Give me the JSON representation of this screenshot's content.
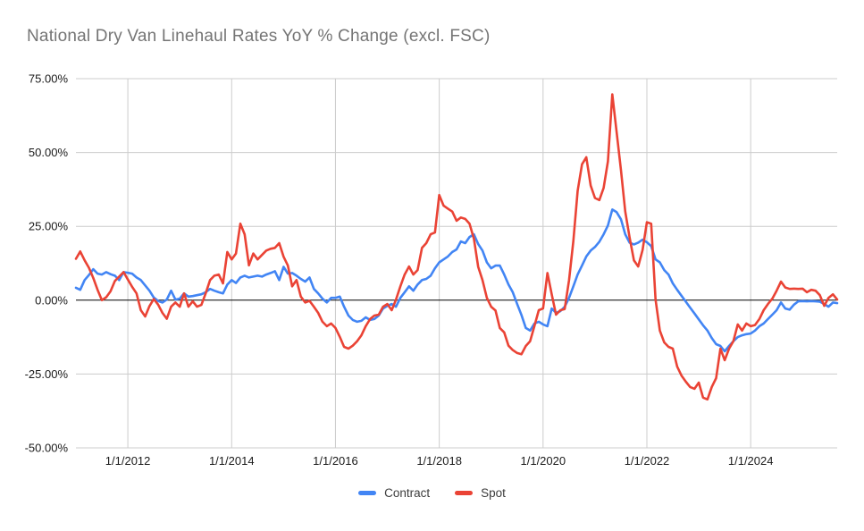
{
  "title": "National Dry Van Linehaul Rates YoY % Change (excl. FSC)",
  "colors": {
    "contract": "#4285F4",
    "spot": "#EA4335",
    "gridline": "#cccccc",
    "zero_line": "#000000",
    "title_text": "#757575",
    "axis_text": "#1a1a1a"
  },
  "chart_data": {
    "type": "line",
    "title": "National Dry Van Linehaul Rates YoY % Change (excl. FSC)",
    "x_start": "1/2011",
    "x_interval": "monthly",
    "xlabel": "",
    "ylabel": "",
    "ylim": [
      -50,
      75
    ],
    "grid": true,
    "legend_position": "bottom",
    "y_ticks": [
      {
        "label": "75.00%",
        "value": 75
      },
      {
        "label": "50.00%",
        "value": 50
      },
      {
        "label": "25.00%",
        "value": 25
      },
      {
        "label": "0.00%",
        "value": 0
      },
      {
        "label": "-25.00%",
        "value": -25
      },
      {
        "label": "-50.00%",
        "value": -50
      }
    ],
    "x_ticks": [
      {
        "label": "1/1/2012",
        "month_index": 12
      },
      {
        "label": "1/1/2014",
        "month_index": 36
      },
      {
        "label": "1/1/2016",
        "month_index": 60
      },
      {
        "label": "1/1/2018",
        "month_index": 84
      },
      {
        "label": "1/1/2020",
        "month_index": 108
      },
      {
        "label": "1/1/2022",
        "month_index": 132
      },
      {
        "label": "1/1/2024",
        "month_index": 156
      }
    ],
    "series": [
      {
        "name": "Contract",
        "color": "#4285F4",
        "values": [
          4.2,
          3.5,
          6.8,
          8.5,
          10.5,
          9,
          8.7,
          9.5,
          8.8,
          8.3,
          6.8,
          9.5,
          9.3,
          9,
          7.7,
          6.8,
          5,
          3.2,
          0.9,
          -0.3,
          -0.8,
          0.2,
          3.2,
          0.2,
          0.5,
          2.3,
          1.2,
          1.4,
          1.7,
          2,
          2.7,
          3.8,
          3.2,
          2.7,
          2.3,
          5.3,
          6.8,
          5.8,
          7.7,
          8.3,
          7.7,
          8,
          8.3,
          8,
          8.7,
          9.2,
          9.8,
          6.8,
          11.3,
          9,
          9.2,
          8.3,
          7.2,
          6.3,
          7.7,
          3.8,
          2.3,
          0.5,
          -0.8,
          0.8,
          0.8,
          1.2,
          -2.2,
          -5.2,
          -6.7,
          -7.3,
          -7,
          -5.8,
          -6.7,
          -6.4,
          -5.2,
          -2.8,
          -1.9,
          -1.3,
          -2.2,
          0.8,
          2.7,
          4.7,
          3.2,
          5.3,
          6.8,
          7.2,
          8.3,
          10.8,
          12.8,
          13.8,
          14.8,
          16.3,
          17.2,
          19.9,
          19.3,
          21.4,
          22.3,
          19,
          16.8,
          12.8,
          10.8,
          11.7,
          11.7,
          8.7,
          5.3,
          2.7,
          -1.3,
          -5,
          -9.4,
          -10.3,
          -7.9,
          -7.3,
          -8.2,
          -8.8,
          -2.8,
          -4.3,
          -3.7,
          -2.2,
          0.8,
          4.7,
          8.7,
          11.7,
          14.8,
          16.8,
          18,
          19.8,
          22.3,
          25.3,
          30.7,
          29.8,
          27.4,
          22.3,
          19.5,
          18.9,
          19.5,
          20.5,
          19.6,
          18.3,
          13.8,
          12.8,
          10.2,
          8.7,
          5.7,
          3.5,
          1.5,
          -0.5,
          -2.5,
          -4.5,
          -6.5,
          -8.5,
          -10.3,
          -12.8,
          -14.9,
          -15.5,
          -17.3,
          -15.5,
          -13.9,
          -12.5,
          -11.9,
          -11.5,
          -11.3,
          -10.3,
          -8.8,
          -7.9,
          -6.4,
          -4.9,
          -3.4,
          -0.8,
          -2.8,
          -3.2,
          -1.5,
          -0.4,
          -0.3,
          -0.4,
          -0.3,
          -0.4,
          -0.5,
          -1.3,
          -2.2,
          -0.8,
          -1.0
        ]
      },
      {
        "name": "Spot",
        "color": "#EA4335",
        "values": [
          14,
          16.5,
          13.5,
          11,
          7.5,
          3.5,
          0,
          1,
          3,
          6.5,
          8,
          9.5,
          7,
          4.5,
          2.3,
          -3.4,
          -5.5,
          -2,
          0.4,
          -1.5,
          -4.3,
          -6.3,
          -2.2,
          -0.8,
          -2.2,
          2.3,
          -2.2,
          -0.4,
          -2.2,
          -1.6,
          2.3,
          6.8,
          8.3,
          8.7,
          5.7,
          16.3,
          13.8,
          15.8,
          25.9,
          22.3,
          11.8,
          15.8,
          13.8,
          15.3,
          16.8,
          17.4,
          17.7,
          19.3,
          14.7,
          11.7,
          4.7,
          6.8,
          1.2,
          -0.8,
          -0.2,
          -2.2,
          -4.3,
          -7.3,
          -8.8,
          -7.9,
          -9.4,
          -12.4,
          -15.8,
          -16.4,
          -15.4,
          -13.9,
          -11.9,
          -8.8,
          -6.4,
          -5.2,
          -4.9,
          -2.2,
          -1.3,
          -3.4,
          0.2,
          4.7,
          8.7,
          11.4,
          8.7,
          10.2,
          17.7,
          19.3,
          22.3,
          22.9,
          35.6,
          32,
          31,
          30,
          26.9,
          28,
          27.5,
          25.9,
          20.8,
          11.3,
          6.8,
          0.8,
          -2.2,
          -3.5,
          -9.4,
          -10.9,
          -15.4,
          -16.9,
          -17.9,
          -18.3,
          -15.5,
          -13.9,
          -8.8,
          -3.4,
          -2.8,
          9.2,
          2,
          -4.9,
          -3.4,
          -3,
          6.8,
          20,
          37,
          46,
          48.4,
          38.8,
          34.6,
          33.9,
          38,
          47,
          69.7,
          57,
          44,
          30,
          21.3,
          13.5,
          11.4,
          17,
          26.4,
          25.9,
          0.2,
          -10.3,
          -14.3,
          -15.8,
          -16.4,
          -22.5,
          -25.5,
          -27.6,
          -29.4,
          -30,
          -27.9,
          -33,
          -33.6,
          -29.4,
          -26.4,
          -16.4,
          -20.3,
          -16.4,
          -13.9,
          -8.2,
          -10.3,
          -7.9,
          -8.8,
          -8.4,
          -6.4,
          -3.4,
          -1.3,
          0.5,
          3.2,
          6.3,
          4.3,
          3.8,
          3.9,
          3.8,
          3.9,
          2.7,
          3.5,
          3.2,
          1.7,
          -1.9,
          0.8,
          2,
          0.2
        ]
      }
    ]
  },
  "legend": {
    "items": [
      {
        "label": "Contract",
        "color": "#4285F4"
      },
      {
        "label": "Spot",
        "color": "#EA4335"
      }
    ]
  }
}
